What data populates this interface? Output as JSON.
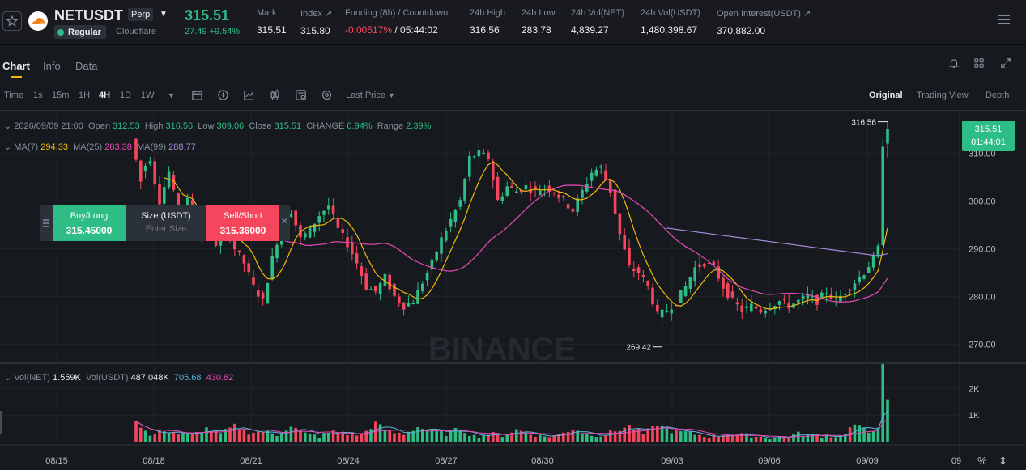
{
  "header": {
    "symbol": "NETUSDT",
    "contract_tag": "Perp",
    "session_tag": "Regular",
    "company": "Cloudflare",
    "last_price": "315.51",
    "change": "27.49 +9.54%",
    "stats": [
      {
        "label": "Mark",
        "value": "315.51"
      },
      {
        "label": "Index ↗",
        "value": "315.80"
      },
      {
        "label": "Funding (8h) / Countdown",
        "value_funding": "-0.00517%",
        "value_countdown": "/ 05:44:02"
      },
      {
        "label": "24h High",
        "value": "316.56"
      },
      {
        "label": "24h Low",
        "value": "283.78"
      },
      {
        "label": "24h Vol(NET)",
        "value": "4,839.27"
      },
      {
        "label": "24h Vol(USDT)",
        "value": "1,480,398.67"
      },
      {
        "label": "Open Interest(USDT) ↗",
        "value": "370,882.00"
      }
    ]
  },
  "tabs": [
    "Chart",
    "Info",
    "Data"
  ],
  "toolbar": {
    "time_label": "Time",
    "intervals": [
      "1s",
      "15m",
      "1H",
      "4H",
      "1D",
      "1W"
    ],
    "active_interval": "4H",
    "price_type": "Last Price",
    "views": [
      "Original",
      "Trading View",
      "Depth"
    ],
    "active_view": "Original"
  },
  "legend": {
    "date": "2026/09/09 21:00",
    "open_label": "Open",
    "open": "312.53",
    "high_label": "High",
    "high": "316.56",
    "low_label": "Low",
    "low": "309.06",
    "close_label": "Close",
    "close": "315.51",
    "change_label": "CHANGE",
    "change": "0.94%",
    "range_label": "Range",
    "range": "2.39%",
    "ma7_label": "MA(7)",
    "ma7": "294.33",
    "ma25_label": "MA(25)",
    "ma25": "283.38",
    "ma99_label": "MA(99)",
    "ma99": "288.77",
    "vol_label": "Vol(NET)",
    "vol_net": "1.559K",
    "volusdt_label": "Vol(USDT)",
    "vol_usdt": "487.048K",
    "vol_ma1": "705.68",
    "vol_ma2": "430.82"
  },
  "order_panel": {
    "buy_label": "Buy/Long",
    "buy_price": "315.45000",
    "size_label": "Size (USDT)",
    "size_placeholder": "Enter Size",
    "sell_label": "Sell/Short",
    "sell_price": "315.36000"
  },
  "price_badge": {
    "price": "315.51",
    "countdown": "01:44:01"
  },
  "watermark": "BINANCE",
  "colors": {
    "up": "#2ebd85",
    "down": "#f6465d",
    "ma7": "#f0b90b",
    "ma25": "#e84ab5",
    "ma99": "#a48ad6",
    "accent": "#f0b90b"
  },
  "chart_data": {
    "type": "candlestick",
    "price_ticks": [
      310,
      300,
      290,
      280,
      270
    ],
    "price_ylim": [
      267,
      317
    ],
    "volume_ticks": [
      "2K",
      "1K"
    ],
    "volume_tick_values": [
      2000,
      1000
    ],
    "volume_ylim": [
      0,
      2900
    ],
    "x_labels": [
      "08/15",
      "08/18",
      "08/21",
      "08/24",
      "08/27",
      "08/30",
      "09/03",
      "09/06",
      "09/09",
      "09"
    ],
    "high_marker": "316.56",
    "low_marker": "269.42",
    "ohlc_keyframes": [
      [
        0,
        313,
        304
      ],
      [
        2,
        306,
        309
      ],
      [
        4,
        308,
        300
      ],
      [
        6,
        300,
        306
      ],
      [
        8,
        306,
        297
      ],
      [
        10,
        297,
        300
      ],
      [
        12,
        300,
        293
      ],
      [
        14,
        293,
        296
      ],
      [
        16,
        296,
        291
      ],
      [
        18,
        291,
        295
      ],
      [
        20,
        295,
        290
      ],
      [
        22,
        290,
        287
      ],
      [
        24,
        287,
        282
      ],
      [
        26,
        282,
        279
      ],
      [
        28,
        279,
        288
      ],
      [
        30,
        288,
        295
      ],
      [
        32,
        295,
        298
      ],
      [
        34,
        298,
        292
      ],
      [
        36,
        292,
        294
      ],
      [
        38,
        294,
        297
      ],
      [
        40,
        297,
        299
      ],
      [
        42,
        299,
        294
      ],
      [
        44,
        294,
        291
      ],
      [
        46,
        291,
        287
      ],
      [
        48,
        287,
        282
      ],
      [
        50,
        282,
        281
      ],
      [
        52,
        281,
        284
      ],
      [
        54,
        284,
        280
      ],
      [
        56,
        280,
        278
      ],
      [
        58,
        278,
        279
      ],
      [
        60,
        279,
        283
      ],
      [
        62,
        283,
        287
      ],
      [
        64,
        287,
        292
      ],
      [
        66,
        292,
        296
      ],
      [
        68,
        296,
        300
      ],
      [
        70,
        300,
        309
      ],
      [
        72,
        309,
        310
      ],
      [
        74,
        310,
        309
      ],
      [
        76,
        309,
        300
      ],
      [
        78,
        300,
        303
      ],
      [
        80,
        303,
        302
      ],
      [
        82,
        302,
        303
      ],
      [
        84,
        303,
        302
      ],
      [
        86,
        302,
        303
      ],
      [
        88,
        303,
        302
      ],
      [
        90,
        302,
        300
      ],
      [
        92,
        300,
        298
      ],
      [
        94,
        298,
        302
      ],
      [
        96,
        302,
        306
      ],
      [
        98,
        306,
        307
      ],
      [
        100,
        307,
        302
      ],
      [
        102,
        302,
        293
      ],
      [
        104,
        293,
        286
      ],
      [
        106,
        286,
        285
      ],
      [
        108,
        285,
        282
      ],
      [
        110,
        282,
        276
      ],
      [
        112,
        276,
        277
      ],
      [
        114,
        277,
        279
      ],
      [
        116,
        279,
        282
      ],
      [
        118,
        282,
        286
      ],
      [
        120,
        286,
        287
      ],
      [
        122,
        287,
        286
      ],
      [
        124,
        286,
        282
      ],
      [
        126,
        282,
        279
      ],
      [
        128,
        279,
        277
      ],
      [
        130,
        277,
        278
      ],
      [
        132,
        278,
        277
      ],
      [
        134,
        277,
        278
      ],
      [
        136,
        278,
        279
      ],
      [
        138,
        279,
        278
      ],
      [
        140,
        278,
        279
      ],
      [
        142,
        279,
        280
      ],
      [
        144,
        280,
        279
      ],
      [
        146,
        279,
        281
      ],
      [
        148,
        281,
        279
      ],
      [
        150,
        279,
        281
      ],
      [
        152,
        281,
        283
      ],
      [
        154,
        283,
        285
      ],
      [
        156,
        285,
        288
      ],
      [
        158,
        288,
        290
      ],
      [
        159,
        290,
        312
      ],
      [
        160,
        312,
        315
      ]
    ],
    "volume_keyframes": [
      [
        0,
        800
      ],
      [
        3,
        200
      ],
      [
        6,
        450
      ],
      [
        9,
        300
      ],
      [
        12,
        250
      ],
      [
        15,
        500
      ],
      [
        18,
        300
      ],
      [
        21,
        600
      ],
      [
        24,
        350
      ],
      [
        27,
        400
      ],
      [
        30,
        250
      ],
      [
        33,
        600
      ],
      [
        36,
        300
      ],
      [
        39,
        200
      ],
      [
        42,
        400
      ],
      [
        45,
        300
      ],
      [
        48,
        250
      ],
      [
        51,
        700
      ],
      [
        54,
        350
      ],
      [
        57,
        300
      ],
      [
        60,
        550
      ],
      [
        63,
        400
      ],
      [
        66,
        300
      ],
      [
        69,
        500
      ],
      [
        72,
        200
      ],
      [
        75,
        300
      ],
      [
        78,
        250
      ],
      [
        81,
        450
      ],
      [
        84,
        300
      ],
      [
        87,
        200
      ],
      [
        90,
        250
      ],
      [
        93,
        500
      ],
      [
        96,
        300
      ],
      [
        99,
        250
      ],
      [
        102,
        400
      ],
      [
        105,
        600
      ],
      [
        108,
        300
      ],
      [
        111,
        650
      ],
      [
        114,
        400
      ],
      [
        117,
        350
      ],
      [
        120,
        250
      ],
      [
        123,
        200
      ],
      [
        126,
        300
      ],
      [
        129,
        250
      ],
      [
        132,
        200
      ],
      [
        135,
        150
      ],
      [
        138,
        200
      ],
      [
        141,
        300
      ],
      [
        144,
        200
      ],
      [
        147,
        250
      ],
      [
        150,
        200
      ],
      [
        153,
        650
      ],
      [
        156,
        350
      ],
      [
        158,
        600
      ],
      [
        159,
        2850
      ],
      [
        160,
        1600
      ]
    ]
  }
}
